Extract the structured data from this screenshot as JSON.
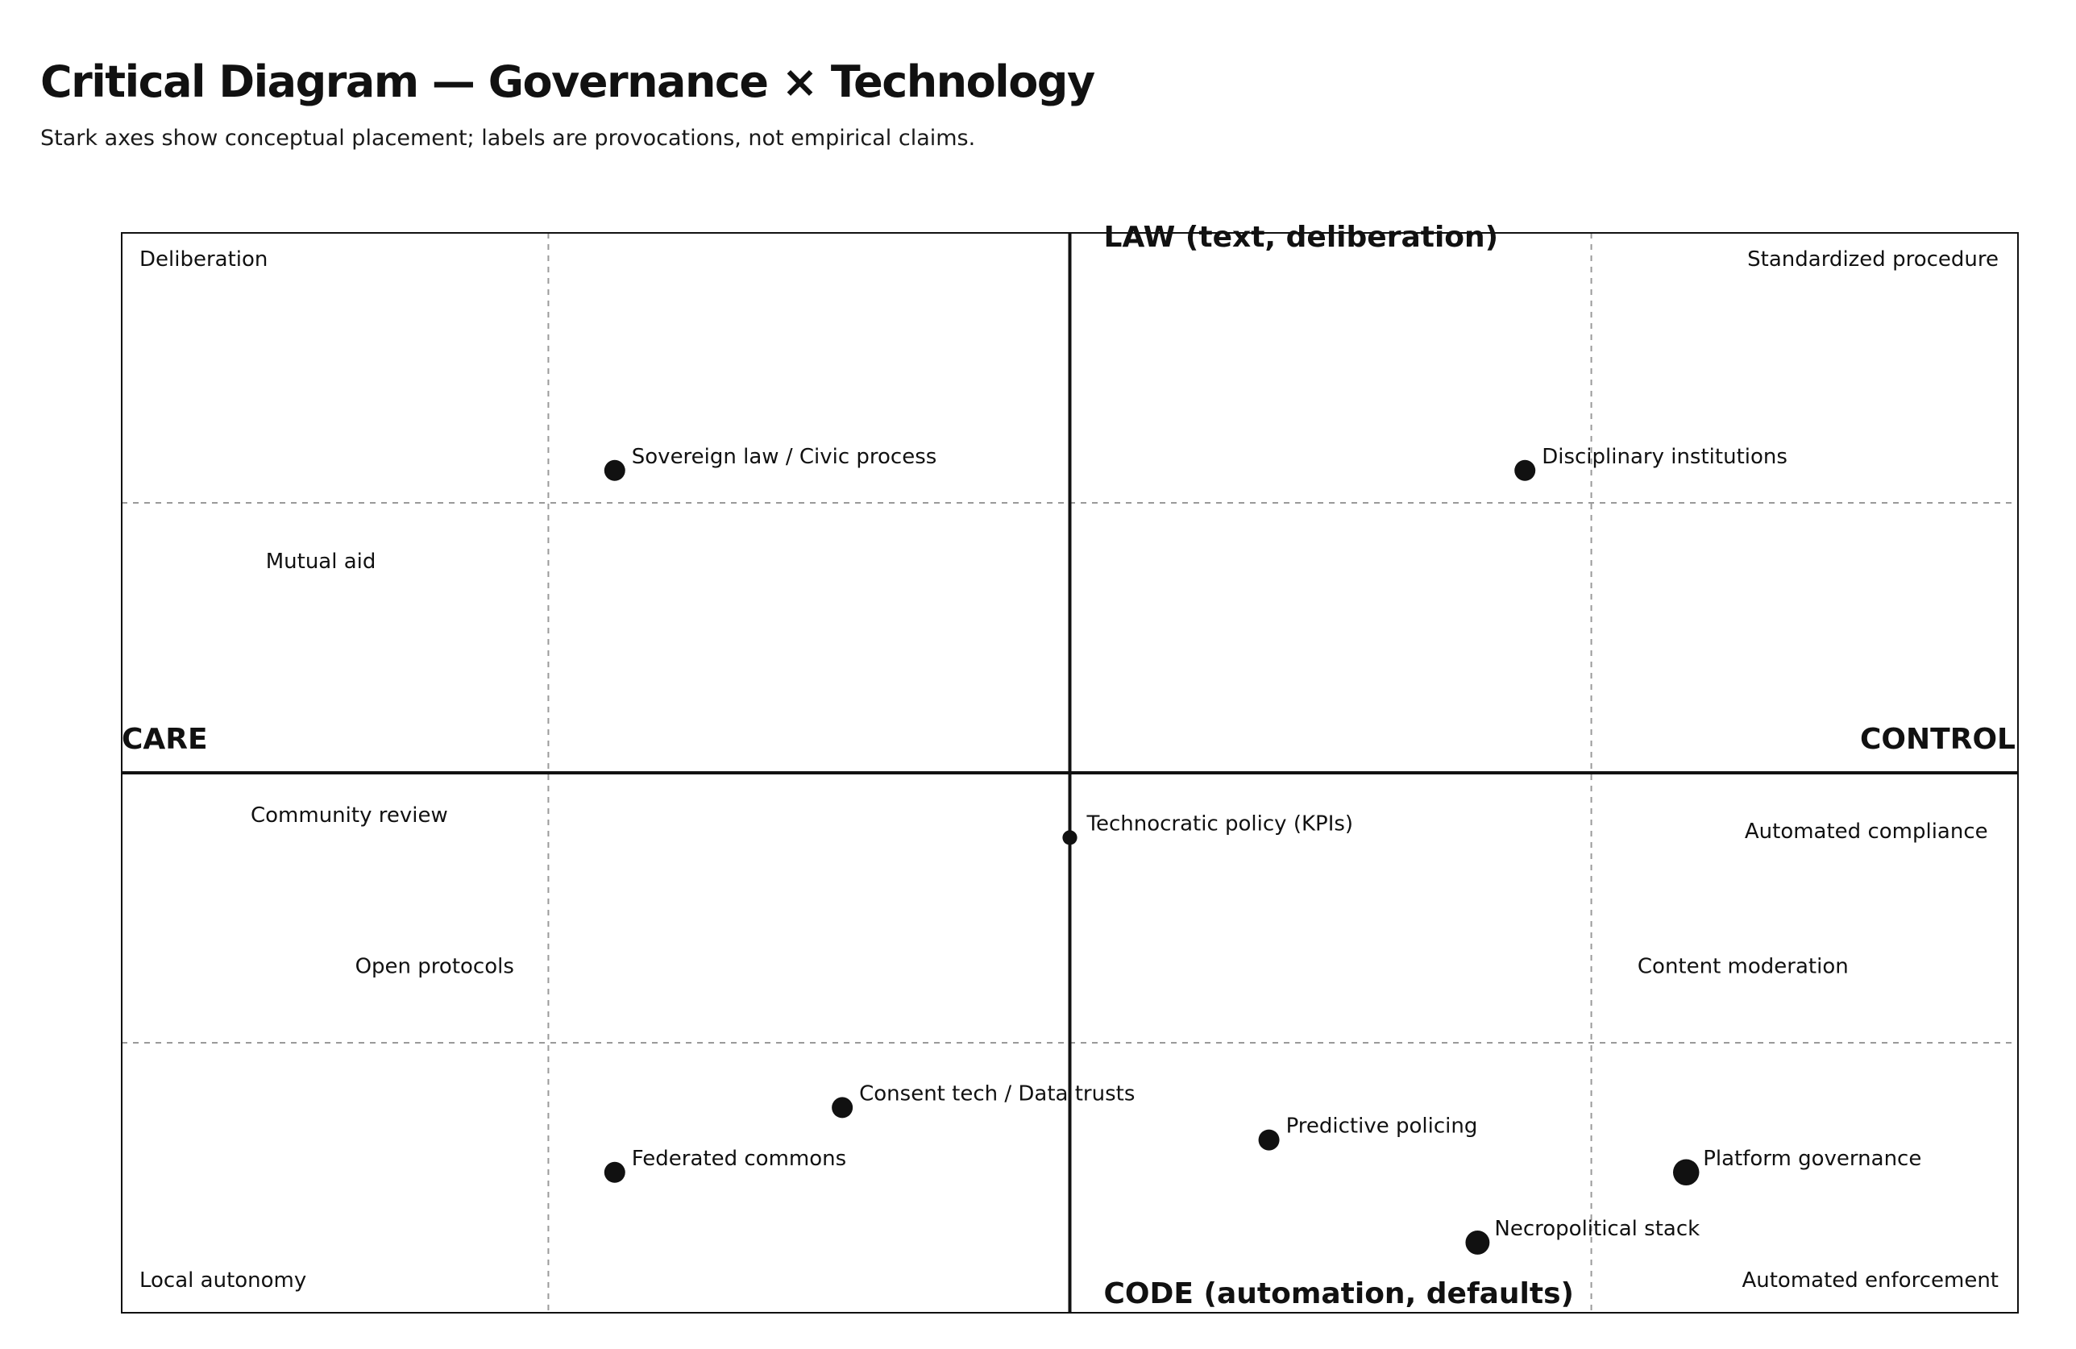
{
  "header": {
    "title": "Critical Diagram — Governance × Technology",
    "subtitle": "Stark axes show conceptual placement; labels are provocations, not empirical claims."
  },
  "colors": {
    "ink": "#111111",
    "grid": "#9a9a9a",
    "frame": "#111111"
  },
  "chart_data": {
    "type": "scatter",
    "title": "Critical Diagram — Governance × Technology",
    "subtitle": "Stark axes show conceptual placement; labels are provocations, not empirical claims.",
    "xlim": [
      -1,
      1
    ],
    "ylim": [
      -1,
      1
    ],
    "grid": true,
    "grid_ticks_x": [
      -0.55,
      0,
      0.55
    ],
    "grid_ticks_y": [
      -0.5,
      0,
      0.5
    ],
    "axes": {
      "left": "CARE",
      "right": "CONTROL",
      "top": "LAW (text, deliberation)",
      "bottom": "CODE (automation, defaults)"
    },
    "corners": {
      "top_left": "Deliberation",
      "top_right": "Standardized procedure",
      "bottom_left": "Local autonomy",
      "bottom_right": "Automated enforcement"
    },
    "points": [
      {
        "label": "Sovereign law / Civic process",
        "x": -0.48,
        "y": 0.56,
        "size": 1.0
      },
      {
        "label": "Disciplinary institutions",
        "x": 0.48,
        "y": 0.56,
        "size": 1.0
      },
      {
        "label": "Technocratic policy (KPIs)",
        "x": 0.0,
        "y": -0.12,
        "size": 0.7
      },
      {
        "label": "Consent tech / Data trusts",
        "x": -0.24,
        "y": -0.62,
        "size": 1.0
      },
      {
        "label": "Federated commons",
        "x": -0.48,
        "y": -0.74,
        "size": 1.0
      },
      {
        "label": "Predictive policing",
        "x": 0.21,
        "y": -0.68,
        "size": 1.0
      },
      {
        "label": "Platform governance",
        "x": 0.65,
        "y": -0.74,
        "size": 1.25
      },
      {
        "label": "Necropolitical stack",
        "x": 0.43,
        "y": -0.87,
        "size": 1.15
      }
    ],
    "annotations": [
      {
        "text": "Mutual aid",
        "x": -0.79,
        "y": 0.39
      },
      {
        "text": "Community review",
        "x": -0.76,
        "y": -0.08
      },
      {
        "text": "Open protocols",
        "x": -0.67,
        "y": -0.36
      },
      {
        "text": "Automated compliance",
        "x": 0.84,
        "y": -0.11
      },
      {
        "text": "Content moderation",
        "x": 0.71,
        "y": -0.36
      }
    ]
  }
}
